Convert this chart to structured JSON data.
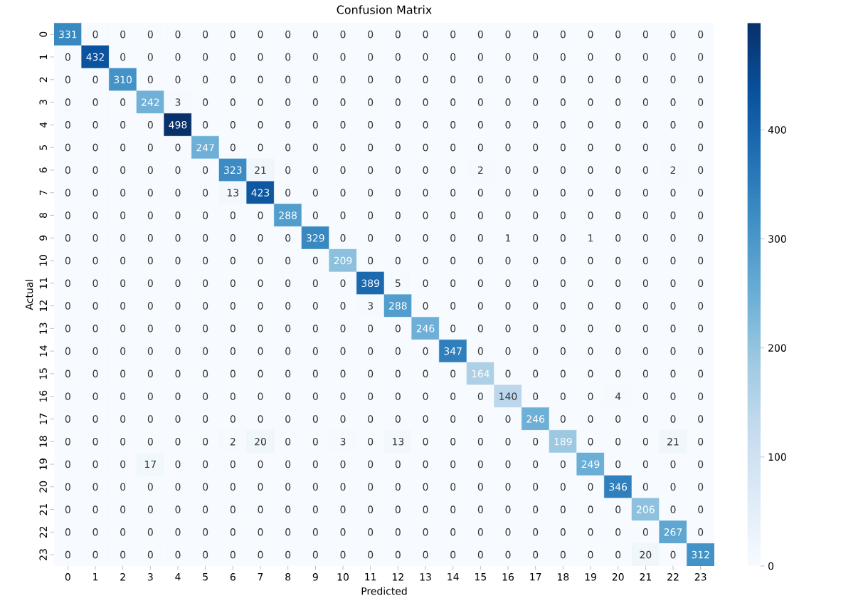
{
  "chart_data": {
    "type": "heatmap",
    "title": "Confusion Matrix",
    "xlabel": "Predicted",
    "ylabel": "Actual",
    "categories": [
      "0",
      "1",
      "2",
      "3",
      "4",
      "5",
      "6",
      "7",
      "8",
      "9",
      "10",
      "11",
      "12",
      "13",
      "14",
      "15",
      "16",
      "17",
      "18",
      "19",
      "20",
      "21",
      "22",
      "23"
    ],
    "y_categories": [
      "0",
      "1",
      "2",
      "3",
      "4",
      "5",
      "6",
      "7",
      "8",
      "9",
      "10",
      "11",
      "12",
      "13",
      "14",
      "15",
      "16",
      "17",
      "18",
      "19",
      "20",
      "21",
      "22",
      "23"
    ],
    "cells": [
      [
        331,
        0,
        0,
        0,
        0,
        0,
        0,
        0,
        0,
        0,
        0,
        0,
        0,
        0,
        0,
        0,
        0,
        0,
        0,
        0,
        0,
        0,
        0,
        0
      ],
      [
        0,
        432,
        0,
        0,
        0,
        0,
        0,
        0,
        0,
        0,
        0,
        0,
        0,
        0,
        0,
        0,
        0,
        0,
        0,
        0,
        0,
        0,
        0,
        0
      ],
      [
        0,
        0,
        310,
        0,
        0,
        0,
        0,
        0,
        0,
        0,
        0,
        0,
        0,
        0,
        0,
        0,
        0,
        0,
        0,
        0,
        0,
        0,
        0,
        0
      ],
      [
        0,
        0,
        0,
        242,
        3,
        0,
        0,
        0,
        0,
        0,
        0,
        0,
        0,
        0,
        0,
        0,
        0,
        0,
        0,
        0,
        0,
        0,
        0,
        0
      ],
      [
        0,
        0,
        0,
        0,
        498,
        0,
        0,
        0,
        0,
        0,
        0,
        0,
        0,
        0,
        0,
        0,
        0,
        0,
        0,
        0,
        0,
        0,
        0,
        0
      ],
      [
        0,
        0,
        0,
        0,
        0,
        247,
        0,
        0,
        0,
        0,
        0,
        0,
        0,
        0,
        0,
        0,
        0,
        0,
        0,
        0,
        0,
        0,
        0,
        0
      ],
      [
        0,
        0,
        0,
        0,
        0,
        0,
        323,
        21,
        0,
        0,
        0,
        0,
        0,
        0,
        0,
        2,
        0,
        0,
        0,
        0,
        0,
        0,
        2,
        0
      ],
      [
        0,
        0,
        0,
        0,
        0,
        0,
        13,
        423,
        0,
        0,
        0,
        0,
        0,
        0,
        0,
        0,
        0,
        0,
        0,
        0,
        0,
        0,
        0,
        0
      ],
      [
        0,
        0,
        0,
        0,
        0,
        0,
        0,
        0,
        288,
        0,
        0,
        0,
        0,
        0,
        0,
        0,
        0,
        0,
        0,
        0,
        0,
        0,
        0,
        0
      ],
      [
        0,
        0,
        0,
        0,
        0,
        0,
        0,
        0,
        0,
        329,
        0,
        0,
        0,
        0,
        0,
        0,
        1,
        0,
        0,
        1,
        0,
        0,
        0,
        0
      ],
      [
        0,
        0,
        0,
        0,
        0,
        0,
        0,
        0,
        0,
        0,
        209,
        0,
        0,
        0,
        0,
        0,
        0,
        0,
        0,
        0,
        0,
        0,
        0,
        0
      ],
      [
        0,
        0,
        0,
        0,
        0,
        0,
        0,
        0,
        0,
        0,
        0,
        389,
        5,
        0,
        0,
        0,
        0,
        0,
        0,
        0,
        0,
        0,
        0,
        0
      ],
      [
        0,
        0,
        0,
        0,
        0,
        0,
        0,
        0,
        0,
        0,
        0,
        3,
        288,
        0,
        0,
        0,
        0,
        0,
        0,
        0,
        0,
        0,
        0,
        0
      ],
      [
        0,
        0,
        0,
        0,
        0,
        0,
        0,
        0,
        0,
        0,
        0,
        0,
        0,
        246,
        0,
        0,
        0,
        0,
        0,
        0,
        0,
        0,
        0,
        0
      ],
      [
        0,
        0,
        0,
        0,
        0,
        0,
        0,
        0,
        0,
        0,
        0,
        0,
        0,
        0,
        347,
        0,
        0,
        0,
        0,
        0,
        0,
        0,
        0,
        0
      ],
      [
        0,
        0,
        0,
        0,
        0,
        0,
        0,
        0,
        0,
        0,
        0,
        0,
        0,
        0,
        0,
        164,
        0,
        0,
        0,
        0,
        0,
        0,
        0,
        0
      ],
      [
        0,
        0,
        0,
        0,
        0,
        0,
        0,
        0,
        0,
        0,
        0,
        0,
        0,
        0,
        0,
        0,
        140,
        0,
        0,
        0,
        4,
        0,
        0,
        0
      ],
      [
        0,
        0,
        0,
        0,
        0,
        0,
        0,
        0,
        0,
        0,
        0,
        0,
        0,
        0,
        0,
        0,
        0,
        246,
        0,
        0,
        0,
        0,
        0,
        0
      ],
      [
        0,
        0,
        0,
        0,
        0,
        0,
        2,
        20,
        0,
        0,
        3,
        0,
        13,
        0,
        0,
        0,
        0,
        0,
        189,
        0,
        0,
        0,
        21,
        0
      ],
      [
        0,
        0,
        0,
        17,
        0,
        0,
        0,
        0,
        0,
        0,
        0,
        0,
        0,
        0,
        0,
        0,
        0,
        0,
        0,
        249,
        0,
        0,
        0,
        0
      ],
      [
        0,
        0,
        0,
        0,
        0,
        0,
        0,
        0,
        0,
        0,
        0,
        0,
        0,
        0,
        0,
        0,
        0,
        0,
        0,
        0,
        346,
        0,
        0,
        0
      ],
      [
        0,
        0,
        0,
        0,
        0,
        0,
        0,
        0,
        0,
        0,
        0,
        0,
        0,
        0,
        0,
        0,
        0,
        0,
        0,
        0,
        0,
        206,
        0,
        0
      ],
      [
        0,
        0,
        0,
        0,
        0,
        0,
        0,
        0,
        0,
        0,
        0,
        0,
        0,
        0,
        0,
        0,
        0,
        0,
        0,
        0,
        0,
        0,
        267,
        0
      ],
      [
        0,
        0,
        0,
        0,
        0,
        0,
        0,
        0,
        0,
        0,
        0,
        0,
        0,
        0,
        0,
        0,
        0,
        0,
        0,
        0,
        0,
        20,
        0,
        312
      ]
    ],
    "data_labels": true,
    "clim": [
      0,
      498
    ],
    "cticks": [
      0,
      100,
      200,
      300,
      400
    ]
  }
}
